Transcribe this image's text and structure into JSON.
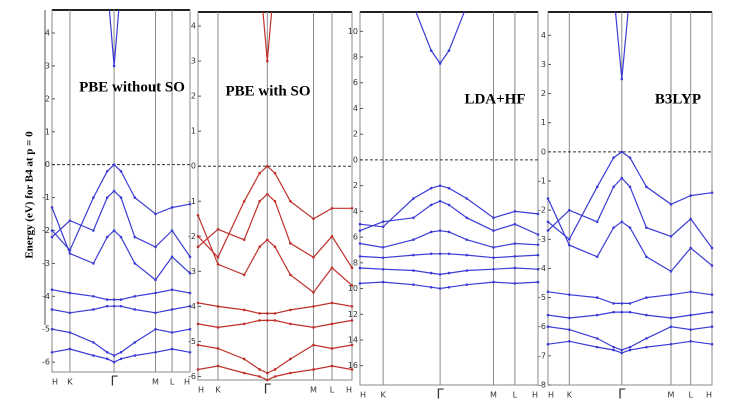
{
  "ylabel": "Energy (eV) for B4 at p = 0",
  "chart_data": [
    {
      "type": "line",
      "title": "PBE without SO",
      "x": [
        0,
        0.13,
        0.3,
        0.4,
        0.45,
        0.5,
        0.6,
        0.75,
        0.87,
        1
      ],
      "xlim": [
        0,
        1
      ],
      "xticks": [
        {
          "value": 0,
          "label": "H"
        },
        {
          "value": 0.13,
          "label": "K"
        },
        {
          "value": 0.45,
          "label": "Γ"
        },
        {
          "value": 0.75,
          "label": "M"
        },
        {
          "value": 0.87,
          "label": "L"
        },
        {
          "value": 1,
          "label": "H"
        }
      ],
      "ylim": [
        -6.3,
        4.7
      ],
      "yticks": [
        -6,
        -5,
        -4,
        -3,
        -2,
        -1,
        0,
        1,
        2,
        3,
        4
      ],
      "hline": 0,
      "color": "#3b3bd6",
      "series": [
        {
          "values": [
            null,
            null,
            null,
            5.5,
            3.0,
            5.5,
            null,
            null,
            null,
            null
          ]
        },
        {
          "values": [
            -2.0,
            -2.6,
            -1.0,
            -0.2,
            0,
            -0.2,
            -1.0,
            -1.5,
            -1.3,
            -1.2
          ]
        },
        {
          "values": [
            -2.2,
            -1.7,
            -2.0,
            -1.0,
            -0.8,
            -1.0,
            -2.2,
            -2.5,
            -2.0,
            -2.8
          ]
        },
        {
          "values": [
            -1.3,
            -2.7,
            -3.0,
            -2.2,
            -2.0,
            -2.2,
            -3.0,
            -3.5,
            -2.8,
            -3.3
          ]
        },
        {
          "values": [
            -3.8,
            -3.9,
            -4.0,
            -4.1,
            -4.1,
            -4.1,
            -4.0,
            -3.9,
            -3.8,
            -3.9
          ]
        },
        {
          "values": [
            -4.4,
            -4.5,
            -4.4,
            -4.3,
            -4.3,
            -4.3,
            -4.4,
            -4.5,
            -4.4,
            -4.3
          ]
        },
        {
          "values": [
            -5.0,
            -5.1,
            -5.4,
            -5.7,
            -5.8,
            -5.7,
            -5.4,
            -5.0,
            -5.1,
            -5.0
          ]
        },
        {
          "values": [
            -5.7,
            -5.6,
            -5.8,
            -5.9,
            -6.0,
            -5.9,
            -5.8,
            -5.7,
            -5.6,
            -5.7
          ]
        }
      ]
    },
    {
      "type": "line",
      "title": "PBE with SO",
      "x": [
        0,
        0.13,
        0.3,
        0.4,
        0.45,
        0.5,
        0.6,
        0.75,
        0.87,
        1
      ],
      "xlim": [
        0,
        1
      ],
      "xticks": [
        {
          "value": 0,
          "label": "H"
        },
        {
          "value": 0.13,
          "label": "K"
        },
        {
          "value": 0.45,
          "label": "Γ"
        },
        {
          "value": 0.75,
          "label": "M"
        },
        {
          "value": 0.87,
          "label": "L"
        },
        {
          "value": 1,
          "label": "H"
        }
      ],
      "ylim": [
        -6.1,
        4.4
      ],
      "yticks": [
        -6,
        -5,
        -4,
        -3,
        -2,
        -1,
        0,
        1,
        2,
        3,
        4
      ],
      "hline": 0,
      "color": "#c0302a",
      "series": [
        {
          "values": [
            null,
            null,
            null,
            5.5,
            3.0,
            5.5,
            null,
            null,
            null,
            null
          ]
        },
        {
          "values": [
            -2.0,
            -2.6,
            -1.0,
            -0.2,
            0,
            -0.2,
            -1.0,
            -1.5,
            -1.2,
            -1.2
          ]
        },
        {
          "values": [
            -2.3,
            -1.8,
            -2.1,
            -1.0,
            -0.8,
            -1.0,
            -2.2,
            -2.6,
            -2.0,
            -2.9
          ]
        },
        {
          "values": [
            -1.4,
            -2.8,
            -3.1,
            -2.3,
            -2.1,
            -2.3,
            -3.1,
            -3.6,
            -2.9,
            -3.4
          ]
        },
        {
          "values": [
            -3.9,
            -4.0,
            -4.1,
            -4.2,
            -4.2,
            -4.2,
            -4.1,
            -4.0,
            -3.9,
            -4.0
          ]
        },
        {
          "values": [
            -4.5,
            -4.6,
            -4.5,
            -4.4,
            -4.4,
            -4.4,
            -4.5,
            -4.6,
            -4.5,
            -4.4
          ]
        },
        {
          "values": [
            -5.1,
            -5.2,
            -5.5,
            -5.8,
            -5.9,
            -5.8,
            -5.5,
            -5.1,
            -5.2,
            -5.1
          ]
        },
        {
          "values": [
            -5.8,
            -5.7,
            -5.9,
            -6.0,
            -6.1,
            -6.0,
            -5.9,
            -5.8,
            -5.7,
            -5.8
          ]
        }
      ]
    },
    {
      "type": "line",
      "title": "LDA+HF",
      "x": [
        0,
        0.13,
        0.3,
        0.4,
        0.45,
        0.5,
        0.6,
        0.75,
        0.87,
        1
      ],
      "xlim": [
        0,
        1
      ],
      "xticks": [
        {
          "value": 0,
          "label": "H"
        },
        {
          "value": 0.13,
          "label": "K"
        },
        {
          "value": 0.45,
          "label": "Γ"
        },
        {
          "value": 0.75,
          "label": "M"
        },
        {
          "value": 0.87,
          "label": "L"
        },
        {
          "value": 1,
          "label": "H"
        }
      ],
      "ylim": [
        -17.5,
        11.5
      ],
      "yticks": [
        {
          "value": -16,
          "label": "16"
        },
        {
          "value": -14,
          "label": "14"
        },
        {
          "value": -12,
          "label": "12"
        },
        {
          "value": -10,
          "label": "10"
        },
        {
          "value": -8,
          "label": "8"
        },
        {
          "value": -6,
          "label": "6"
        },
        {
          "value": -4,
          "label": "4"
        },
        {
          "value": -2,
          "label": "2"
        },
        0,
        2,
        4,
        6,
        8,
        10
      ],
      "hline": 0,
      "color": "#3b3bd6",
      "series": [
        {
          "values": [
            null,
            null,
            12,
            8.5,
            7.5,
            8.5,
            12,
            null,
            null,
            null
          ]
        },
        {
          "values": [
            -5.0,
            -5.2,
            -3.0,
            -2.2,
            -2.0,
            -2.2,
            -3.0,
            -4.5,
            -4.0,
            -4.2
          ]
        },
        {
          "values": [
            -5.5,
            -4.8,
            -4.5,
            -3.5,
            -3.2,
            -3.5,
            -4.5,
            -5.5,
            -5.0,
            -5.8
          ]
        },
        {
          "values": [
            -6.5,
            -6.8,
            -6.2,
            -5.6,
            -5.5,
            -5.6,
            -6.2,
            -6.8,
            -6.5,
            -6.6
          ]
        },
        {
          "values": [
            -7.5,
            -7.6,
            -7.4,
            -7.3,
            -7.3,
            -7.3,
            -7.4,
            -7.6,
            -7.5,
            -7.4
          ]
        },
        {
          "values": [
            -8.4,
            -8.5,
            -8.6,
            -8.8,
            -8.9,
            -8.8,
            -8.6,
            -8.5,
            -8.4,
            -8.5
          ]
        },
        {
          "values": [
            -9.6,
            -9.5,
            -9.7,
            -9.9,
            -10.0,
            -9.9,
            -9.7,
            -9.5,
            -9.6,
            -9.5
          ]
        }
      ]
    },
    {
      "type": "line",
      "title": "B3LYP",
      "x": [
        0,
        0.13,
        0.3,
        0.4,
        0.45,
        0.5,
        0.6,
        0.75,
        0.87,
        1
      ],
      "xlim": [
        0,
        1
      ],
      "xticks": [
        {
          "value": 0,
          "label": "H"
        },
        {
          "value": 0.13,
          "label": "K"
        },
        {
          "value": 0.45,
          "label": "Γ"
        },
        {
          "value": 0.75,
          "label": "M"
        },
        {
          "value": 0.87,
          "label": "L"
        },
        {
          "value": 1,
          "label": "H"
        }
      ],
      "ylim": [
        -8,
        4.8
      ],
      "yticks": [
        -8,
        -7,
        -6,
        -5,
        -4,
        -3,
        -2,
        -1,
        0,
        1,
        2,
        3,
        4
      ],
      "hline": 0,
      "color": "#3b3bd6",
      "series": [
        {
          "values": [
            null,
            null,
            null,
            5.5,
            2.5,
            5.5,
            null,
            null,
            null,
            null
          ]
        },
        {
          "values": [
            -2.4,
            -3.0,
            -1.2,
            -0.2,
            0,
            -0.2,
            -1.2,
            -1.8,
            -1.5,
            -1.4
          ]
        },
        {
          "values": [
            -2.7,
            -2.0,
            -2.4,
            -1.2,
            -0.9,
            -1.2,
            -2.6,
            -2.9,
            -2.3,
            -3.3
          ]
        },
        {
          "values": [
            -1.6,
            -3.2,
            -3.6,
            -2.6,
            -2.4,
            -2.6,
            -3.6,
            -4.1,
            -3.3,
            -3.9
          ]
        },
        {
          "values": [
            -4.8,
            -4.9,
            -5.0,
            -5.2,
            -5.2,
            -5.2,
            -5.0,
            -4.9,
            -4.8,
            -4.9
          ]
        },
        {
          "values": [
            -5.6,
            -5.7,
            -5.6,
            -5.5,
            -5.5,
            -5.5,
            -5.6,
            -5.7,
            -5.6,
            -5.5
          ]
        },
        {
          "values": [
            -6.0,
            -6.1,
            -6.4,
            -6.7,
            -6.8,
            -6.7,
            -6.4,
            -6.0,
            -6.1,
            -6.0
          ]
        },
        {
          "values": [
            -6.6,
            -6.5,
            -6.7,
            -6.8,
            -6.9,
            -6.8,
            -6.7,
            -6.6,
            -6.5,
            -6.6
          ]
        }
      ]
    }
  ]
}
